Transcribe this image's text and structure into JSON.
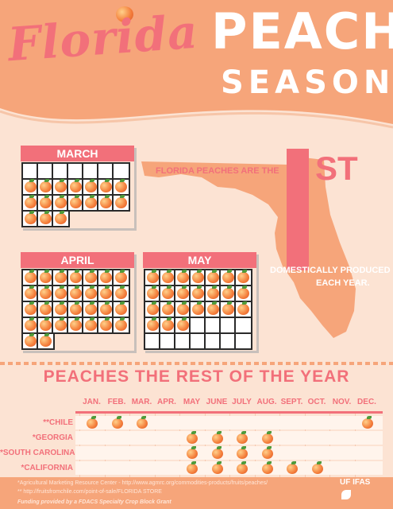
{
  "header": {
    "title_script": "Florida",
    "title_main": "PEACH",
    "title_sub": "SEASON"
  },
  "calendars": {
    "march": {
      "label": "MARCH",
      "blank_leading": 0,
      "empty_days": 7,
      "peach_days": 17
    },
    "april": {
      "label": "APRIL",
      "blank_leading": 0,
      "empty_days": 0,
      "peach_days": 30
    },
    "may": {
      "label": "MAY",
      "blank_leading": 0,
      "empty_days": 0,
      "peach_days": 24,
      "trailing_empty": 11
    }
  },
  "florida": {
    "line1": "FLORIDA PEACHES ARE THE",
    "rank": "1",
    "suffix": "ST",
    "line2": "DOMESTICALLY PRODUCED",
    "line3": "EACH YEAR."
  },
  "rest_of_year": {
    "title": "PEACHES THE REST OF THE YEAR",
    "months": [
      "JAN.",
      "FEB.",
      "MAR.",
      "APR.",
      "MAY",
      "JUNE",
      "JULY",
      "AUG.",
      "SEPT.",
      "OCT.",
      "NOV.",
      "DEC."
    ],
    "rows": [
      {
        "label": "**CHILE",
        "months": [
          0,
          1,
          2,
          11
        ]
      },
      {
        "label": "*GEORGIA",
        "months": [
          4,
          5,
          6,
          7
        ]
      },
      {
        "label": "*SOUTH CAROLINA",
        "months": [
          4,
          5,
          6,
          7
        ]
      },
      {
        "label": "*CALIFORNIA",
        "months": [
          4,
          5,
          6,
          7,
          8,
          9
        ]
      }
    ]
  },
  "footer": {
    "note1": "*Agricultural Marketing Resource Center - http://www.agmrc.org/commodities-products/fruits/peaches/",
    "note2": "** http://fruitsfromchile.com/point-of-sale/FLORIDA STORE",
    "funding": "Funding provided by a FDACS Specialty Crop Block Grant",
    "logo_text": "UF IFAS"
  },
  "colors": {
    "accent": "#f2707a",
    "header": "#f6a57a",
    "background": "#fce3d3",
    "state": "#f6a57a"
  }
}
